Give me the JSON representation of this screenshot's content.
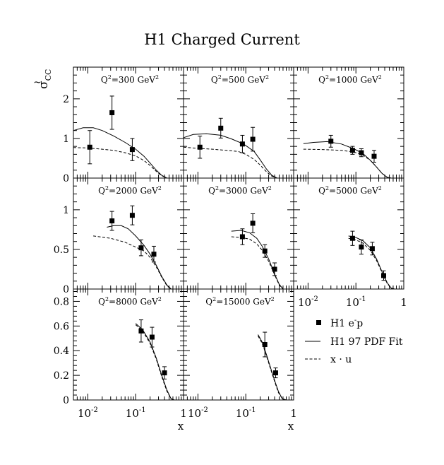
{
  "chart_data": {
    "type": "scatter",
    "title": "H1 Charged Current",
    "ylabel_main": "σ",
    "ylabel_sub": "CC",
    "ylabel_tilde": "~",
    "xlabel": "x",
    "xscale": "log",
    "xlim": [
      0.005,
      1.0
    ],
    "legend": {
      "placement": "bottom-right",
      "entries": [
        {
          "label": "H1 e",
          "sup": "-",
          "tail": "p",
          "style": "marker"
        },
        {
          "label": "H1 97 PDF Fit",
          "style": "solid"
        },
        {
          "label": "x · u",
          "style": "dashed"
        }
      ]
    },
    "x_tick_labels": [
      {
        "x": 0.01,
        "base": "10",
        "exp": "-2"
      },
      {
        "x": 0.1,
        "base": "10",
        "exp": "-1"
      },
      {
        "x": 1.0,
        "base": "1",
        "exp": ""
      }
    ],
    "rows": [
      {
        "ylim": [
          0,
          2.8
        ],
        "ticks": [
          0,
          1,
          2
        ],
        "tick_labels": [
          "0",
          "1",
          "2"
        ]
      },
      {
        "ylim": [
          0,
          1.4
        ],
        "ticks": [
          0,
          0.5,
          1
        ],
        "tick_labels": [
          "0",
          "0.5",
          "1"
        ]
      },
      {
        "ylim": [
          0,
          0.9
        ],
        "ticks": [
          0,
          0.2,
          0.4,
          0.6,
          0.8
        ],
        "tick_labels": [
          "0",
          "0.2",
          "0.4",
          "0.6",
          "0.8"
        ]
      }
    ],
    "panels": [
      {
        "label": "Q",
        "unit": "=300 GeV",
        "row": 0,
        "col": 0,
        "points": [
          {
            "x": 0.011,
            "y": 0.78,
            "err": 0.42
          },
          {
            "x": 0.032,
            "y": 1.65,
            "err": 0.42
          },
          {
            "x": 0.085,
            "y": 0.72,
            "err": 0.28
          }
        ],
        "fit": [
          [
            0.005,
            1.2
          ],
          [
            0.008,
            1.27
          ],
          [
            0.013,
            1.27
          ],
          [
            0.02,
            1.2
          ],
          [
            0.035,
            1.06
          ],
          [
            0.06,
            0.9
          ],
          [
            0.1,
            0.73
          ],
          [
            0.15,
            0.55
          ],
          [
            0.2,
            0.38
          ],
          [
            0.27,
            0.2
          ],
          [
            0.35,
            0.07
          ],
          [
            0.45,
            0.0
          ]
        ],
        "xu": [
          [
            0.005,
            0.77
          ],
          [
            0.01,
            0.76
          ],
          [
            0.02,
            0.73
          ],
          [
            0.035,
            0.7
          ],
          [
            0.06,
            0.64
          ],
          [
            0.1,
            0.56
          ],
          [
            0.15,
            0.44
          ],
          [
            0.2,
            0.32
          ],
          [
            0.27,
            0.17
          ],
          [
            0.35,
            0.06
          ],
          [
            0.45,
            0.0
          ]
        ]
      },
      {
        "label": "Q",
        "unit": "=500 GeV",
        "row": 0,
        "col": 1,
        "points": [
          {
            "x": 0.011,
            "y": 0.78,
            "err": 0.28
          },
          {
            "x": 0.03,
            "y": 1.26,
            "err": 0.25
          },
          {
            "x": 0.085,
            "y": 0.86,
            "err": 0.22
          },
          {
            "x": 0.14,
            "y": 0.98,
            "err": 0.3
          }
        ],
        "fit": [
          [
            0.005,
            1.02
          ],
          [
            0.008,
            1.1
          ],
          [
            0.015,
            1.12
          ],
          [
            0.03,
            1.08
          ],
          [
            0.05,
            0.99
          ],
          [
            0.09,
            0.86
          ],
          [
            0.15,
            0.67
          ],
          [
            0.2,
            0.46
          ],
          [
            0.27,
            0.23
          ],
          [
            0.35,
            0.07
          ],
          [
            0.45,
            0.0
          ]
        ],
        "xu": [
          [
            0.005,
            0.78
          ],
          [
            0.01,
            0.75
          ],
          [
            0.02,
            0.73
          ],
          [
            0.04,
            0.7
          ],
          [
            0.07,
            0.67
          ],
          [
            0.1,
            0.6
          ],
          [
            0.15,
            0.47
          ],
          [
            0.2,
            0.33
          ],
          [
            0.27,
            0.16
          ],
          [
            0.35,
            0.05
          ],
          [
            0.45,
            0.0
          ]
        ]
      },
      {
        "label": "Q",
        "unit": "=1000 GeV",
        "row": 0,
        "col": 2,
        "points": [
          {
            "x": 0.03,
            "y": 0.93,
            "err": 0.15
          },
          {
            "x": 0.085,
            "y": 0.7,
            "err": 0.1
          },
          {
            "x": 0.13,
            "y": 0.64,
            "err": 0.1
          },
          {
            "x": 0.24,
            "y": 0.55,
            "err": 0.15
          }
        ],
        "fit": [
          [
            0.008,
            0.87
          ],
          [
            0.013,
            0.9
          ],
          [
            0.025,
            0.92
          ],
          [
            0.05,
            0.86
          ],
          [
            0.09,
            0.74
          ],
          [
            0.14,
            0.62
          ],
          [
            0.2,
            0.45
          ],
          [
            0.27,
            0.28
          ],
          [
            0.35,
            0.12
          ],
          [
            0.45,
            0.02
          ],
          [
            0.55,
            0.0
          ]
        ],
        "xu": [
          [
            0.008,
            0.73
          ],
          [
            0.02,
            0.72
          ],
          [
            0.05,
            0.7
          ],
          [
            0.09,
            0.66
          ],
          [
            0.14,
            0.58
          ],
          [
            0.2,
            0.45
          ],
          [
            0.27,
            0.28
          ],
          [
            0.35,
            0.12
          ],
          [
            0.45,
            0.02
          ],
          [
            0.55,
            0.0
          ]
        ]
      },
      {
        "label": "Q",
        "unit": "=2000 GeV",
        "row": 1,
        "col": 0,
        "points": [
          {
            "x": 0.032,
            "y": 0.86,
            "err": 0.12
          },
          {
            "x": 0.085,
            "y": 0.93,
            "err": 0.12
          },
          {
            "x": 0.13,
            "y": 0.52,
            "err": 0.1
          },
          {
            "x": 0.24,
            "y": 0.44,
            "err": 0.1
          }
        ],
        "fit": [
          [
            0.025,
            0.78
          ],
          [
            0.035,
            0.8
          ],
          [
            0.05,
            0.8
          ],
          [
            0.07,
            0.76
          ],
          [
            0.1,
            0.67
          ],
          [
            0.15,
            0.55
          ],
          [
            0.2,
            0.44
          ],
          [
            0.27,
            0.3
          ],
          [
            0.35,
            0.16
          ],
          [
            0.45,
            0.05
          ],
          [
            0.55,
            0.0
          ]
        ],
        "xu": [
          [
            0.013,
            0.67
          ],
          [
            0.03,
            0.64
          ],
          [
            0.06,
            0.59
          ],
          [
            0.1,
            0.53
          ],
          [
            0.15,
            0.48
          ],
          [
            0.2,
            0.4
          ],
          [
            0.27,
            0.28
          ],
          [
            0.35,
            0.15
          ],
          [
            0.45,
            0.04
          ],
          [
            0.55,
            0.0
          ]
        ]
      },
      {
        "label": "Q",
        "unit": "=3000 GeV",
        "row": 1,
        "col": 1,
        "points": [
          {
            "x": 0.085,
            "y": 0.66,
            "err": 0.1
          },
          {
            "x": 0.14,
            "y": 0.83,
            "err": 0.12
          },
          {
            "x": 0.25,
            "y": 0.48,
            "err": 0.08
          },
          {
            "x": 0.4,
            "y": 0.25,
            "err": 0.08
          }
        ],
        "fit": [
          [
            0.05,
            0.73
          ],
          [
            0.08,
            0.74
          ],
          [
            0.12,
            0.71
          ],
          [
            0.17,
            0.64
          ],
          [
            0.22,
            0.54
          ],
          [
            0.3,
            0.38
          ],
          [
            0.4,
            0.19
          ],
          [
            0.5,
            0.06
          ],
          [
            0.6,
            0.0
          ]
        ],
        "xu": [
          [
            0.05,
            0.66
          ],
          [
            0.08,
            0.65
          ],
          [
            0.12,
            0.63
          ],
          [
            0.17,
            0.57
          ],
          [
            0.22,
            0.49
          ],
          [
            0.3,
            0.35
          ],
          [
            0.4,
            0.18
          ],
          [
            0.5,
            0.05
          ],
          [
            0.6,
            0.0
          ]
        ]
      },
      {
        "label": "Q",
        "unit": "=5000 GeV",
        "row": 1,
        "col": 2,
        "points": [
          {
            "x": 0.085,
            "y": 0.64,
            "err": 0.09
          },
          {
            "x": 0.13,
            "y": 0.53,
            "err": 0.09
          },
          {
            "x": 0.22,
            "y": 0.51,
            "err": 0.08
          },
          {
            "x": 0.38,
            "y": 0.17,
            "err": 0.06
          }
        ],
        "fit": [
          [
            0.07,
            0.67
          ],
          [
            0.1,
            0.65
          ],
          [
            0.14,
            0.61
          ],
          [
            0.2,
            0.52
          ],
          [
            0.27,
            0.38
          ],
          [
            0.35,
            0.22
          ],
          [
            0.45,
            0.08
          ],
          [
            0.55,
            0.01
          ],
          [
            0.65,
            0.0
          ]
        ],
        "xu": [
          [
            0.07,
            0.64
          ],
          [
            0.1,
            0.62
          ],
          [
            0.14,
            0.58
          ],
          [
            0.2,
            0.49
          ],
          [
            0.27,
            0.36
          ],
          [
            0.35,
            0.21
          ],
          [
            0.45,
            0.07
          ],
          [
            0.55,
            0.01
          ],
          [
            0.65,
            0.0
          ]
        ]
      },
      {
        "label": "Q",
        "unit": "=8000 GeV",
        "row": 2,
        "col": 0,
        "points": [
          {
            "x": 0.13,
            "y": 0.56,
            "err": 0.09
          },
          {
            "x": 0.22,
            "y": 0.51,
            "err": 0.08
          },
          {
            "x": 0.4,
            "y": 0.22,
            "err": 0.05
          }
        ],
        "fit": [
          [
            0.1,
            0.62
          ],
          [
            0.14,
            0.57
          ],
          [
            0.2,
            0.47
          ],
          [
            0.27,
            0.34
          ],
          [
            0.35,
            0.2
          ],
          [
            0.45,
            0.08
          ],
          [
            0.55,
            0.01
          ],
          [
            0.65,
            0.0
          ]
        ],
        "xu": [
          [
            0.1,
            0.61
          ],
          [
            0.14,
            0.56
          ],
          [
            0.2,
            0.46
          ],
          [
            0.27,
            0.33
          ],
          [
            0.35,
            0.19
          ],
          [
            0.45,
            0.07
          ],
          [
            0.55,
            0.01
          ],
          [
            0.65,
            0.0
          ]
        ]
      },
      {
        "label": "Q",
        "unit": "=15000 GeV",
        "row": 2,
        "col": 1,
        "points": [
          {
            "x": 0.25,
            "y": 0.45,
            "err": 0.1
          },
          {
            "x": 0.42,
            "y": 0.22,
            "err": 0.04
          }
        ],
        "fit": [
          [
            0.18,
            0.53
          ],
          [
            0.22,
            0.47
          ],
          [
            0.27,
            0.37
          ],
          [
            0.33,
            0.26
          ],
          [
            0.4,
            0.16
          ],
          [
            0.48,
            0.07
          ],
          [
            0.58,
            0.01
          ],
          [
            0.7,
            0.0
          ]
        ],
        "xu": [
          [
            0.18,
            0.52
          ],
          [
            0.22,
            0.46
          ],
          [
            0.27,
            0.36
          ],
          [
            0.33,
            0.25
          ],
          [
            0.4,
            0.15
          ],
          [
            0.48,
            0.06
          ],
          [
            0.58,
            0.01
          ],
          [
            0.7,
            0.0
          ]
        ]
      }
    ]
  }
}
